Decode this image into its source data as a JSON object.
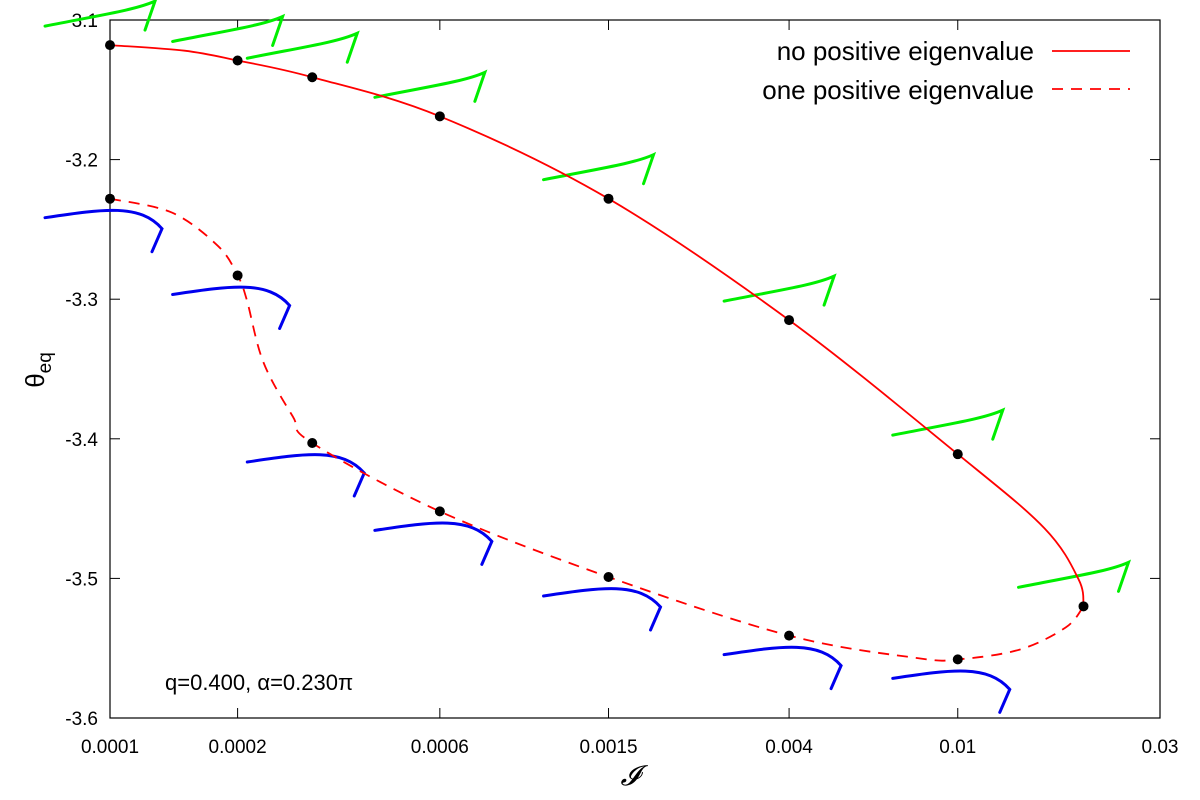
{
  "chart_data": {
    "type": "line",
    "x_scale": "log",
    "xlim": [
      0.0001,
      0.03
    ],
    "ylim": [
      -3.6,
      -3.1
    ],
    "xlabel": "𝓘",
    "ylabel_main": "θ",
    "ylabel_sub": "eq",
    "annotation": "q=0.400, α=0.230π",
    "x_ticks": [
      {
        "value": 0.0001,
        "label": "0.0001"
      },
      {
        "value": 0.0002,
        "label": "0.0002"
      },
      {
        "value": 0.0006,
        "label": "0.0006"
      },
      {
        "value": 0.0015,
        "label": "0.0015"
      },
      {
        "value": 0.004,
        "label": "0.004"
      },
      {
        "value": 0.01,
        "label": "0.01"
      },
      {
        "value": 0.03,
        "label": "0.03"
      }
    ],
    "y_ticks": [
      {
        "value": -3.1,
        "label": "-3.1"
      },
      {
        "value": -3.2,
        "label": "-3.2"
      },
      {
        "value": -3.3,
        "label": "-3.3"
      },
      {
        "value": -3.4,
        "label": "-3.4"
      },
      {
        "value": -3.5,
        "label": "-3.5"
      },
      {
        "value": -3.6,
        "label": "-3.6"
      }
    ],
    "series": [
      {
        "name": "no positive eigenvalue",
        "color": "#ff0000",
        "dash": "solid",
        "x": [
          0.0001,
          0.00015,
          0.0002,
          0.0003,
          0.0006,
          0.0015,
          0.004,
          0.01,
          0.016,
          0.0193,
          0.0198
        ],
        "y": [
          -3.118,
          -3.122,
          -3.129,
          -3.141,
          -3.169,
          -3.228,
          -3.315,
          -3.411,
          -3.464,
          -3.501,
          -3.52
        ]
      },
      {
        "name": "one positive eigenvalue",
        "color": "#ff0000",
        "dash": "dashed",
        "x": [
          0.0001,
          0.00014,
          0.00018,
          0.0002,
          0.00021,
          0.00023,
          0.00027,
          0.0003,
          0.0006,
          0.0015,
          0.004,
          0.008,
          0.01,
          0.014,
          0.018,
          0.0198
        ],
        "y": [
          -3.228,
          -3.238,
          -3.262,
          -3.283,
          -3.3,
          -3.345,
          -3.384,
          -3.403,
          -3.452,
          -3.499,
          -3.541,
          -3.557,
          -3.558,
          -3.551,
          -3.535,
          -3.52
        ]
      }
    ],
    "points": [
      {
        "x": 0.0001,
        "y": -3.118
      },
      {
        "x": 0.0002,
        "y": -3.129
      },
      {
        "x": 0.0003,
        "y": -3.141
      },
      {
        "x": 0.0006,
        "y": -3.169
      },
      {
        "x": 0.0015,
        "y": -3.228
      },
      {
        "x": 0.004,
        "y": -3.315
      },
      {
        "x": 0.01,
        "y": -3.411
      },
      {
        "x": 0.0198,
        "y": -3.52
      },
      {
        "x": 0.0001,
        "y": -3.228
      },
      {
        "x": 0.0002,
        "y": -3.283
      },
      {
        "x": 0.0003,
        "y": -3.403
      },
      {
        "x": 0.0006,
        "y": -3.452
      },
      {
        "x": 0.0015,
        "y": -3.499
      },
      {
        "x": 0.004,
        "y": -3.541
      },
      {
        "x": 0.01,
        "y": -3.558
      }
    ],
    "glyph_colors": {
      "stable": "#00ee00",
      "unstable": "#0000ee"
    },
    "glyphs": [
      {
        "kind": "stable",
        "x": 0.0001,
        "y": -3.118
      },
      {
        "kind": "stable",
        "x": 0.0002,
        "y": -3.129
      },
      {
        "kind": "stable",
        "x": 0.0003,
        "y": -3.141
      },
      {
        "kind": "stable",
        "x": 0.0006,
        "y": -3.169
      },
      {
        "kind": "stable",
        "x": 0.0015,
        "y": -3.228
      },
      {
        "kind": "stable",
        "x": 0.004,
        "y": -3.315
      },
      {
        "kind": "stable",
        "x": 0.01,
        "y": -3.411
      },
      {
        "kind": "stable",
        "x": 0.0198,
        "y": -3.52
      },
      {
        "kind": "unstable",
        "x": 0.0001,
        "y": -3.228
      },
      {
        "kind": "unstable",
        "x": 0.0002,
        "y": -3.283
      },
      {
        "kind": "unstable",
        "x": 0.0003,
        "y": -3.403
      },
      {
        "kind": "unstable",
        "x": 0.0006,
        "y": -3.452
      },
      {
        "kind": "unstable",
        "x": 0.0015,
        "y": -3.499
      },
      {
        "kind": "unstable",
        "x": 0.004,
        "y": -3.541
      },
      {
        "kind": "unstable",
        "x": 0.01,
        "y": -3.558
      }
    ],
    "grid": false,
    "legend_position": "top-right"
  }
}
